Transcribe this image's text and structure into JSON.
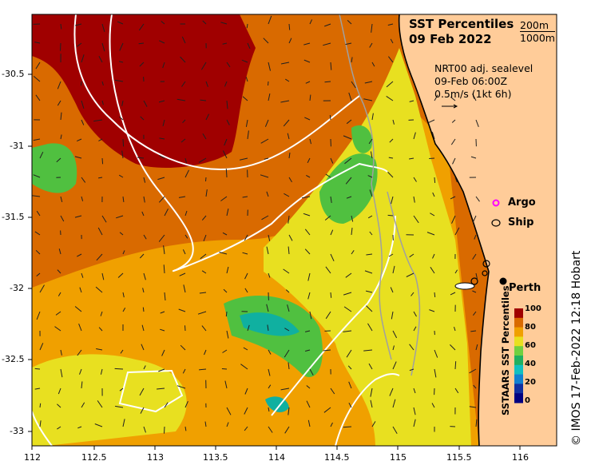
{
  "title_line1": "SST Percentiles",
  "title_line2": "09 Feb 2022",
  "contour_legend": [
    "200m",
    "1000m"
  ],
  "current_info": [
    "NRT00 adj. sealevel",
    "09-Feb 06:00Z",
    "0.5m/s (1kt 6h)"
  ],
  "markers": {
    "argo": "Argo",
    "ship": "Ship",
    "city": "Perth"
  },
  "colorbar": {
    "label": "SSTAARS SST Percentiles",
    "ticks": [
      "100",
      "80",
      "60",
      "40",
      "20",
      "0"
    ],
    "colors": [
      "#a00000",
      "#d96a00",
      "#f0a000",
      "#e8e020",
      "#70d040",
      "#20b060",
      "#10c0c0",
      "#1080d0",
      "#1030a0",
      "#000080"
    ]
  },
  "credit": "© IMOS 17-Feb-2022 12:18 Hobart",
  "axes": {
    "x_ticks": [
      "112",
      "112.5",
      "113",
      "113.5",
      "114",
      "114.5",
      "115",
      "115.5",
      "116"
    ],
    "y_ticks": [
      "-30.5",
      "-31",
      "-31.5",
      "-32",
      "-32.5",
      "-33"
    ]
  },
  "colors": {
    "land": "#ffcc99",
    "warm": "#a00000",
    "orange": "#d96a00",
    "amber": "#f0a000",
    "yellow": "#e8e020",
    "green": "#50c040",
    "teal": "#10b0a0"
  }
}
